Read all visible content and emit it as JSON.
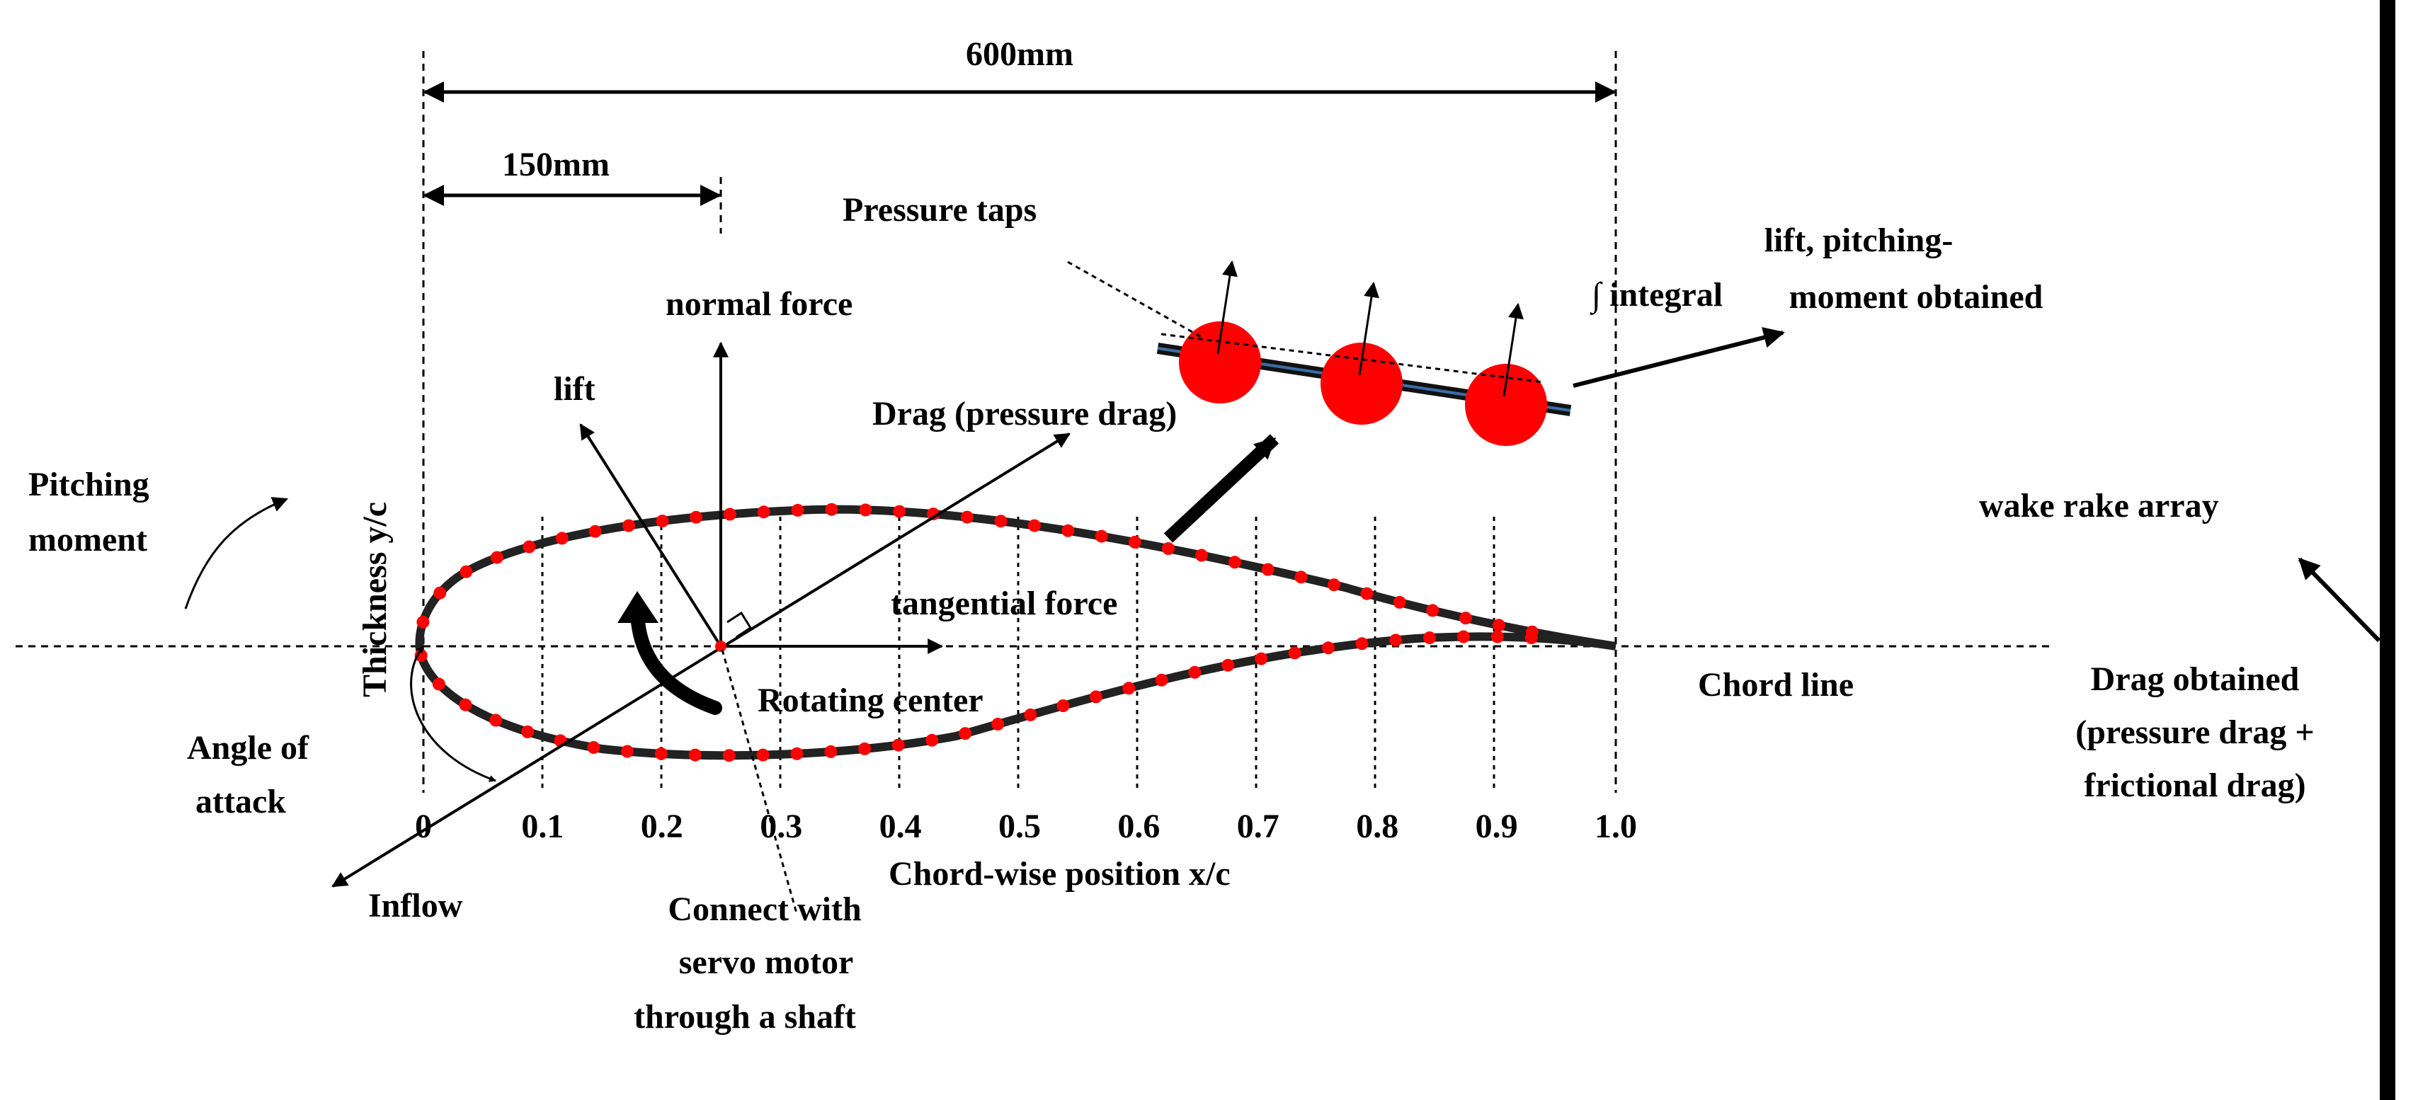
{
  "dimensions": {
    "total_span": "600mm",
    "pivot_distance": "150mm"
  },
  "labels": {
    "pressure_taps": "Pressure taps",
    "normal_force": "normal force",
    "lift": "lift",
    "drag_pressure": "Drag (pressure drag)",
    "integral": "∫ integral",
    "lift_moment_line1": "lift, pitching-",
    "lift_moment_line2": "moment obtained",
    "pitching_line1": "Pitching",
    "pitching_line2": "moment",
    "thickness_axis": "Thickness   y/c",
    "tangential_force": "tangential force",
    "rotating_center": "Rotating center",
    "chord_line": "Chord line",
    "angle_line1": "Angle of",
    "angle_line2": "attack",
    "inflow": "Inflow",
    "connect_line1": "Connect with",
    "connect_line2": "servo motor",
    "connect_line3": "through a shaft",
    "chordwise_axis": "Chord-wise position    x/c",
    "wake_rake": "wake rake array",
    "drag_obtained_line1": "Drag obtained",
    "drag_obtained_line2": "(pressure drag +",
    "drag_obtained_line3": "frictional drag)"
  },
  "x_ticks": [
    "0",
    "0.1",
    "0.2",
    "0.3",
    "0.4",
    "0.5",
    "0.6",
    "0.7",
    "0.8",
    "0.9",
    "1.0"
  ],
  "colors": {
    "tap": "#ff0000",
    "line": "#000000",
    "airfoil_outline": "#222222"
  }
}
